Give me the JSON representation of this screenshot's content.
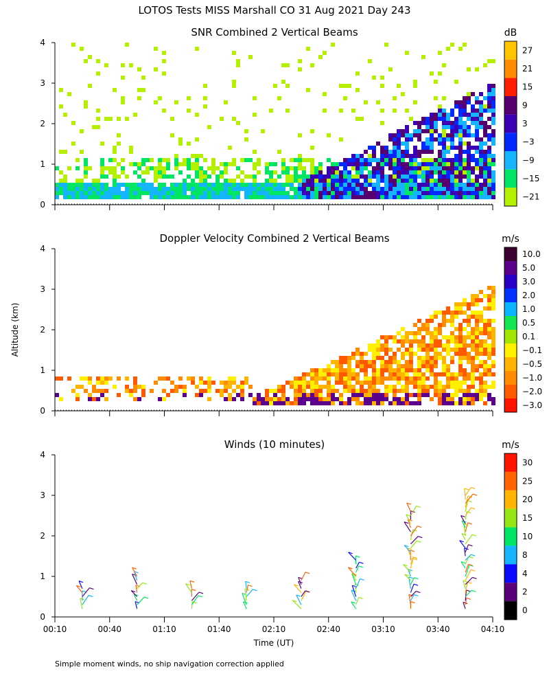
{
  "title": "LOTOS Tests MISS Marshall CO  31 Aug 2021 Day 243",
  "ylabel": "Altitude (km)",
  "footnote": "Simple moment winds, no ship navigation correction applied",
  "chart_data": [
    {
      "type": "heatmap",
      "title": "SNR Combined 2 Vertical Beams",
      "unit": "dB",
      "ylim": [
        0,
        4
      ],
      "yticks": [
        "0",
        "1",
        "2",
        "3",
        "4"
      ],
      "colorbar_labels": [
        "27",
        "21",
        "15",
        "9",
        "3",
        "−3",
        "−9",
        "−15",
        "−21"
      ],
      "colorbar_colors": [
        "#ffc400",
        "#ff8c00",
        "#ff1e00",
        "#55006e",
        "#3c00b4",
        "#0028ff",
        "#14b4ff",
        "#00e664",
        "#b4f000"
      ],
      "description_regions": [
        {
          "t_start": "00:10",
          "t_end": "04:10",
          "alt_km": [
            0.25,
            0.55
          ],
          "level_db": -9
        },
        {
          "t_start": "02:30",
          "t_end": "04:10",
          "alt_km": [
            0.3,
            2.6
          ],
          "level_db": 3
        }
      ]
    },
    {
      "type": "heatmap",
      "title": "Doppler Velocity Combined 2 Vertical Beams",
      "unit": "m/s",
      "ylim": [
        0,
        4
      ],
      "yticks": [
        "0",
        "1",
        "2",
        "3",
        "4"
      ],
      "colorbar_labels": [
        "10.0",
        "5.0",
        "3.0",
        "2.0",
        "1.0",
        "0.5",
        "0.1",
        "−0.1",
        "−0.5",
        "−1.0",
        "−2.0",
        "−3.0"
      ],
      "colorbar_colors": [
        "#3c0032",
        "#5a008c",
        "#2800c8",
        "#0032ff",
        "#0ab4ff",
        "#14e650",
        "#a0e600",
        "#fff000",
        "#ffb400",
        "#ff8c00",
        "#ff5a00",
        "#ff1400"
      ]
    },
    {
      "type": "scatter",
      "title": "Winds (10 minutes)",
      "unit": "m/s",
      "ylim": [
        0,
        4
      ],
      "yticks": [
        "0",
        "1",
        "2",
        "3",
        "4"
      ],
      "colorbar_labels": [
        "30",
        "25",
        "20",
        "15",
        "10",
        "8",
        "4",
        "2",
        "0"
      ],
      "colorbar_colors": [
        "#ff1400",
        "#ff6400",
        "#ffb400",
        "#96e614",
        "#00e664",
        "#14b4ff",
        "#0a0aff",
        "#5a0078",
        "#000000"
      ],
      "xlabel": "Time (UT)",
      "xticks": [
        "00:10",
        "00:40",
        "01:10",
        "01:40",
        "02:10",
        "02:40",
        "03:10",
        "03:40",
        "04:10"
      ],
      "profile_times": [
        "00:25",
        "00:55",
        "01:25",
        "01:55",
        "02:25",
        "02:55",
        "03:25",
        "03:55"
      ],
      "profile_tops_km": [
        0.75,
        1.05,
        0.75,
        0.75,
        0.95,
        1.5,
        2.7,
        3.1
      ]
    }
  ]
}
